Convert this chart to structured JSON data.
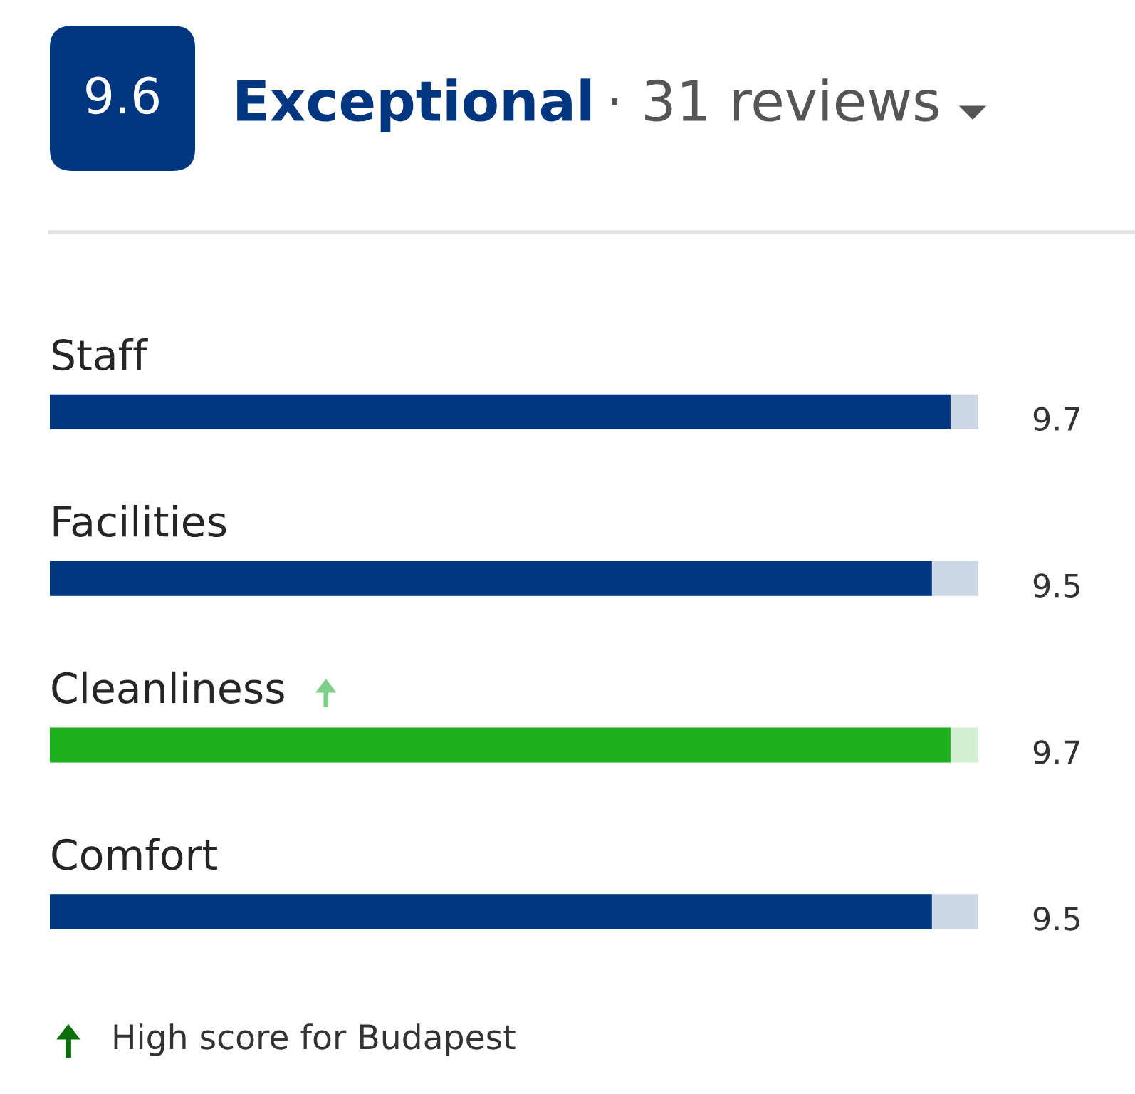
{
  "chart_data": {
    "type": "bar",
    "orientation": "horizontal",
    "title": "Exceptional",
    "subtitle": "· 31 reviews",
    "annotations": [
      "9.6",
      "High score for Budapest"
    ],
    "categories": [
      "Staff",
      "Facilities",
      "Cleanliness",
      "Comfort"
    ],
    "values": [
      9.7,
      9.5,
      9.7,
      9.5
    ],
    "colors": [
      "#003580",
      "#003580",
      "#1db01d",
      "#003580"
    ],
    "xlim": [
      0,
      10
    ],
    "data_labels": true,
    "tick_labels": "y"
  }
}
